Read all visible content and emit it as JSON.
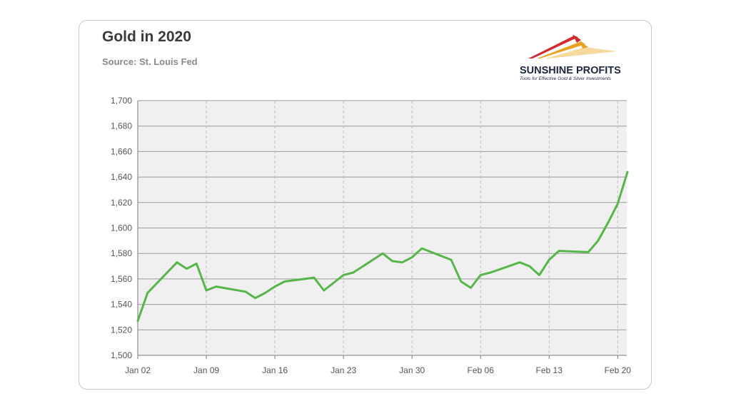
{
  "header": {
    "title": "Gold in 2020",
    "subtitle": "Source: St. Louis Fed"
  },
  "logo": {
    "name": "SUNSHINE PROFITS",
    "tagline": "Tools for Effective Gold & Silver Investments"
  },
  "colors": {
    "line": "#57b649",
    "plot_bg": "#f0f0f0",
    "grid": "#bdbdbd"
  },
  "chart_data": {
    "type": "line",
    "title": "Gold in 2020",
    "subtitle": "Source: St. Louis Fed",
    "xlabel": "",
    "ylabel": "",
    "ylim": [
      1500,
      1700
    ],
    "xlim": [
      "2020-01-02",
      "2020-02-21"
    ],
    "yticks": [
      1500,
      1520,
      1540,
      1560,
      1580,
      1600,
      1620,
      1640,
      1660,
      1680,
      1700
    ],
    "ytick_labels": [
      "1,500",
      "1,520",
      "1,540",
      "1,560",
      "1,580",
      "1,600",
      "1,620",
      "1,640",
      "1,660",
      "1,680",
      "1,700"
    ],
    "xticks": [
      "2020-01-02",
      "2020-01-09",
      "2020-01-16",
      "2020-01-23",
      "2020-01-30",
      "2020-02-06",
      "2020-02-13",
      "2020-02-20"
    ],
    "xtick_labels": [
      "Jan 02",
      "Jan 09",
      "Jan 16",
      "Jan 23",
      "Jan 30",
      "Feb 06",
      "Feb 13",
      "Feb 20"
    ],
    "grid": true,
    "series": [
      {
        "x": [
          "2020-01-02",
          "2020-01-03",
          "2020-01-06",
          "2020-01-07",
          "2020-01-08",
          "2020-01-09",
          "2020-01-10",
          "2020-01-13",
          "2020-01-14",
          "2020-01-15",
          "2020-01-16",
          "2020-01-17",
          "2020-01-20",
          "2020-01-21",
          "2020-01-22",
          "2020-01-23",
          "2020-01-24",
          "2020-01-27",
          "2020-01-28",
          "2020-01-29",
          "2020-01-30",
          "2020-01-31",
          "2020-02-03",
          "2020-02-04",
          "2020-02-05",
          "2020-02-06",
          "2020-02-07",
          "2020-02-10",
          "2020-02-11",
          "2020-02-12",
          "2020-02-13",
          "2020-02-14",
          "2020-02-17",
          "2020-02-18",
          "2020-02-19",
          "2020-02-20",
          "2020-02-21"
        ],
        "values": [
          1527,
          1549,
          1573,
          1568,
          1572,
          1551,
          1554,
          1550,
          1545,
          1549,
          1554,
          1558,
          1561,
          1551,
          1557,
          1563,
          1565,
          1580,
          1574,
          1573,
          1577,
          1584,
          1575,
          1558,
          1553,
          1563,
          1565,
          1573,
          1570,
          1563,
          1575,
          1582,
          1581,
          1590,
          1604,
          1619,
          1644
        ]
      }
    ]
  }
}
